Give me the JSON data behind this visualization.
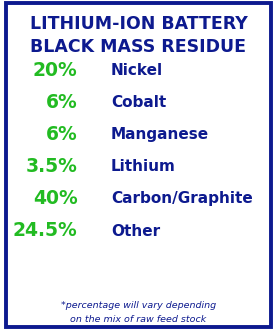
{
  "title_line1": "LITHIUM-ION BATTERY",
  "title_line2": "BLACK MASS RESIDUE",
  "title_color": "#0d1a8f",
  "rows": [
    {
      "pct": "20%",
      "label": "Nickel"
    },
    {
      "pct": "6%",
      "label": "Cobalt"
    },
    {
      "pct": "6%",
      "label": "Manganese"
    },
    {
      "pct": "3.5%",
      "label": "Lithium"
    },
    {
      "pct": "40%",
      "label": "Carbon/Graphite"
    },
    {
      "pct": "24.5%",
      "label": "Other"
    }
  ],
  "pct_color": "#22bb22",
  "label_color": "#0d1a8f",
  "footnote_line1": "*percentage will vary depending",
  "footnote_line2": "on the mix of raw feed stock",
  "footnote_color": "#0d1a8f",
  "bg_color": "#ffffff",
  "border_color": "#0d1a8f",
  "figsize": [
    2.77,
    3.3
  ],
  "dpi": 100
}
